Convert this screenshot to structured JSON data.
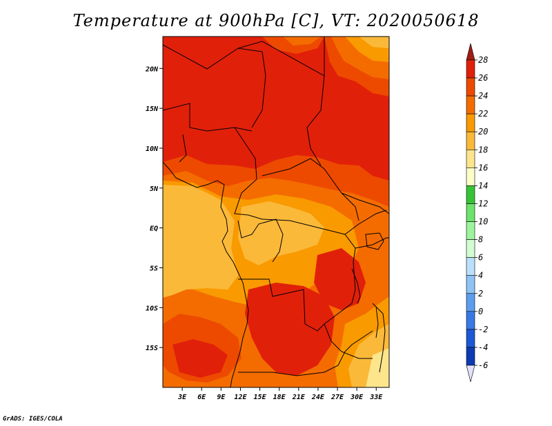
{
  "title": "Temperature at 900hPa [C], VT: 2020050618",
  "credit": "GrADS: IGES/COLA",
  "map": {
    "lon_range": [
      0,
      35
    ],
    "lat_range": [
      -20,
      24
    ],
    "lat_ticks": [
      {
        "value": 20,
        "label": "20N"
      },
      {
        "value": 15,
        "label": "15N"
      },
      {
        "value": 10,
        "label": "10N"
      },
      {
        "value": 5,
        "label": "5N"
      },
      {
        "value": 0,
        "label": "EQ"
      },
      {
        "value": -5,
        "label": "5S"
      },
      {
        "value": -10,
        "label": "10S"
      },
      {
        "value": -15,
        "label": "15S"
      }
    ],
    "lon_ticks": [
      {
        "value": 3,
        "label": "3E"
      },
      {
        "value": 6,
        "label": "6E"
      },
      {
        "value": 9,
        "label": "9E"
      },
      {
        "value": 12,
        "label": "12E"
      },
      {
        "value": 15,
        "label": "15E"
      },
      {
        "value": 18,
        "label": "18E"
      },
      {
        "value": 21,
        "label": "21E"
      },
      {
        "value": 24,
        "label": "24E"
      },
      {
        "value": 27,
        "label": "27E"
      },
      {
        "value": 30,
        "label": "30E"
      },
      {
        "value": 33,
        "label": "33E"
      }
    ]
  },
  "colorbar": {
    "levels": [
      "28",
      "26",
      "24",
      "22",
      "20",
      "18",
      "16",
      "14",
      "12",
      "10",
      "8",
      "6",
      "4",
      "2",
      "0",
      "-2",
      "-4",
      "-6"
    ],
    "colors": [
      "#a01e14",
      "#e1200a",
      "#ed4a00",
      "#f46c00",
      "#f99a00",
      "#fbb93a",
      "#fde58c",
      "#fdfdc8",
      "#37c337",
      "#6ce36c",
      "#9cf49c",
      "#d2fcd2",
      "#bae0fc",
      "#8ec3f6",
      "#5c9df0",
      "#3a78e6",
      "#1c58d6",
      "#0c3bb4",
      "#05147a",
      "#e2e2fa"
    ]
  },
  "colors": {
    "t28": "#e1200a",
    "t26": "#ed4a00",
    "t24": "#f46c00",
    "t22": "#f99a00",
    "t20": "#fbb93a",
    "t18": "#fde58c",
    "t16": "#fdfdc8"
  }
}
